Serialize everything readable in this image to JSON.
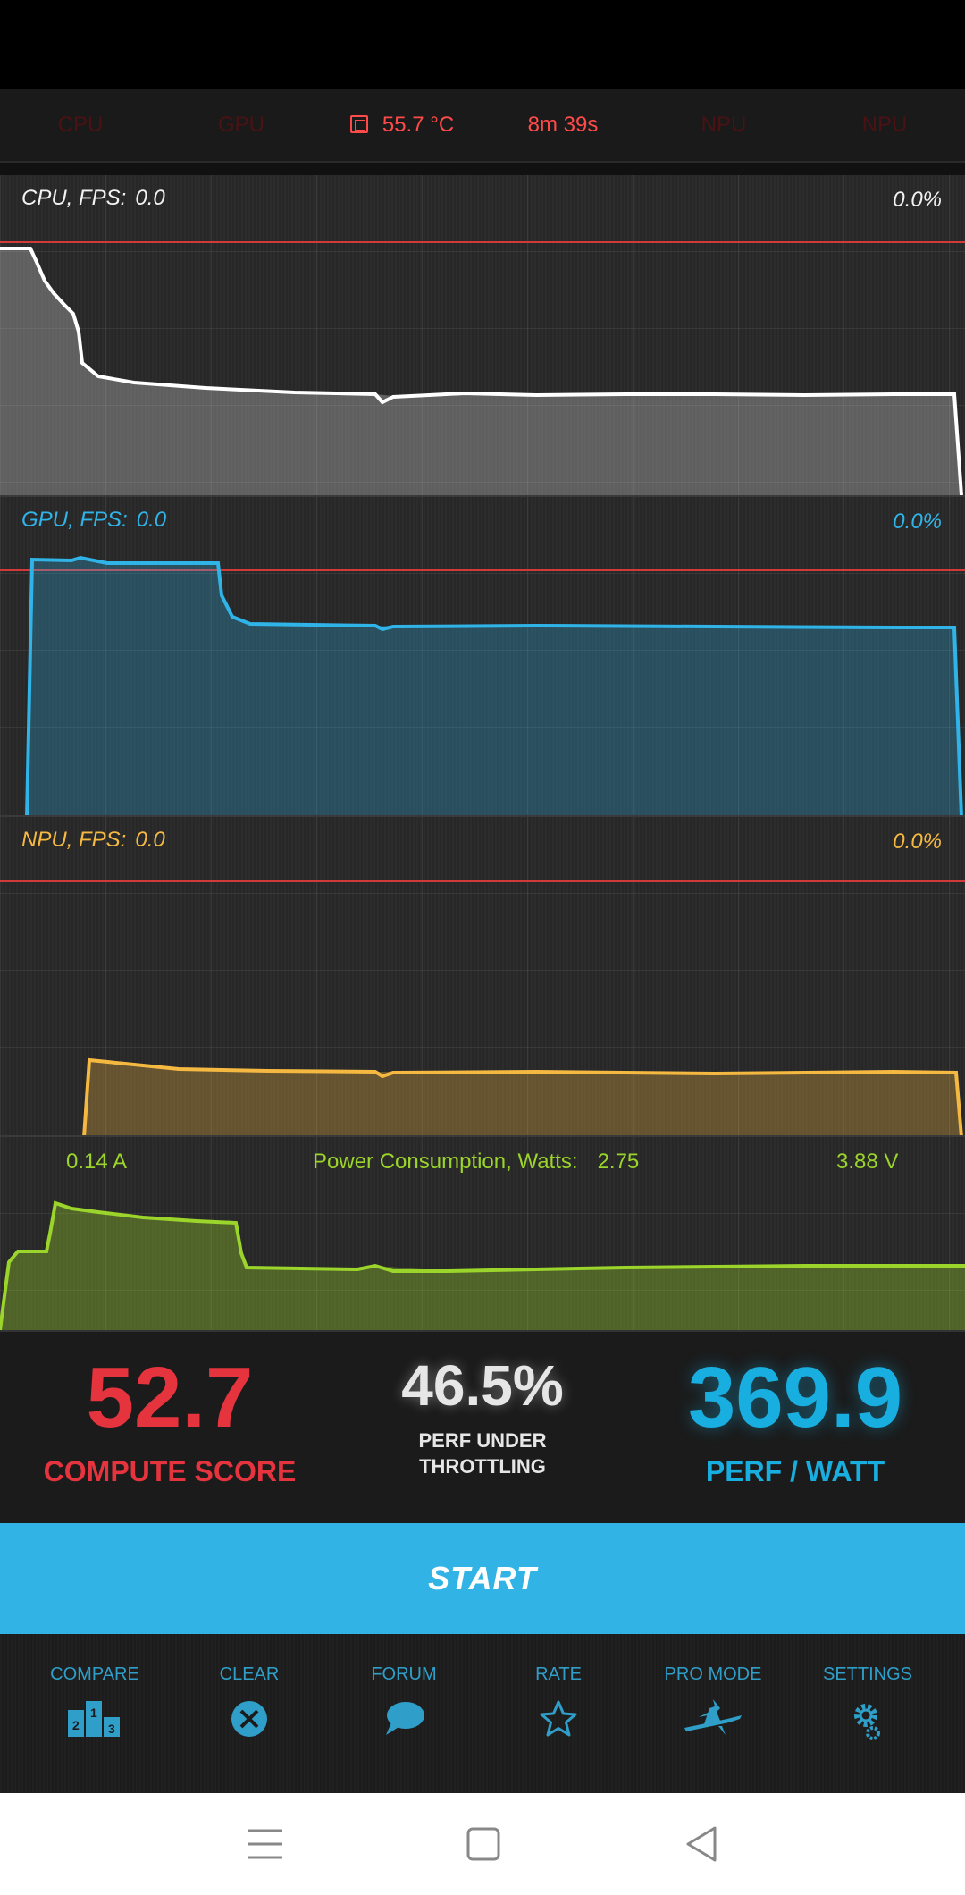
{
  "tabs": {
    "cpu": "CPU",
    "gpu": "GPU",
    "temperature": "55.7 °C",
    "elapsed": "8m 39s",
    "npu1": "NPU",
    "npu2": "NPU"
  },
  "graphs": {
    "cpu": {
      "label": "CPU, FPS:",
      "fps": "0.0",
      "percent": "0.0%",
      "color": "#ffffff"
    },
    "gpu": {
      "label": "GPU, FPS:",
      "fps": "0.0",
      "percent": "0.0%",
      "color": "#30b4e8"
    },
    "npu": {
      "label": "NPU, FPS:",
      "fps": "0.0",
      "percent": "0.0%",
      "color": "#f5b942"
    }
  },
  "power": {
    "current": "0.14 A",
    "label": "Power Consumption, Watts:",
    "watts": "2.75",
    "voltage": "3.88 V",
    "color": "#9bd42a"
  },
  "scores": {
    "compute_value": "52.7",
    "compute_label": "COMPUTE SCORE",
    "throttle_value": "46.5%",
    "throttle_label_line1": "PERF UNDER",
    "throttle_label_line2": "THROTTLING",
    "ppw_value": "369.9",
    "ppw_label": "PERF / WATT"
  },
  "start_label": "START",
  "toolbar": [
    {
      "label": "COMPARE",
      "icon": "podium-icon"
    },
    {
      "label": "CLEAR",
      "icon": "clear-x-icon"
    },
    {
      "label": "FORUM",
      "icon": "chat-bubble-icon"
    },
    {
      "label": "RATE",
      "icon": "star-icon"
    },
    {
      "label": "PRO MODE",
      "icon": "witch-icon"
    },
    {
      "label": "SETTINGS",
      "icon": "gear-icon"
    }
  ],
  "navbar": [
    "menu-icon",
    "home-icon",
    "back-icon"
  ]
}
